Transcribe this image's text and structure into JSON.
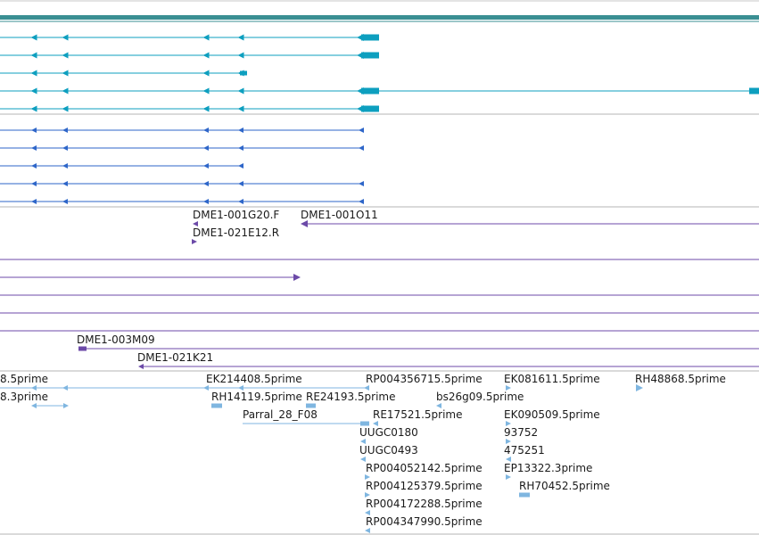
{
  "colors": {
    "mrna": "#0d9fbf",
    "cds": "#2e66c9",
    "clone": "#6c4aa8",
    "est": "#7fb6e0",
    "divider": "#9a9a9a",
    "ruler": "#3a8f93"
  },
  "icons": {
    "intron_marker": "triangle-left-icon",
    "utr_block": "exon-block-icon"
  },
  "tracks": {
    "transcripts": {
      "name": "mrna-transcripts",
      "rows": [
        {
          "id": "mrna-1"
        },
        {
          "id": "mrna-2"
        },
        {
          "id": "mrna-3"
        },
        {
          "id": "mrna-4"
        },
        {
          "id": "mrna-5"
        }
      ]
    },
    "cds": {
      "name": "coding-sequences",
      "rows": [
        {
          "id": "cds-1"
        },
        {
          "id": "cds-2"
        },
        {
          "id": "cds-3"
        },
        {
          "id": "cds-4"
        },
        {
          "id": "cds-5"
        }
      ]
    },
    "clones": {
      "name": "bac-clone-ends",
      "items": [
        {
          "label": "DME1-001G20.F"
        },
        {
          "label": "DME1-001O11"
        },
        {
          "label": "DME1-021E12.R"
        },
        {
          "label": "DME1-003M09"
        },
        {
          "label": "DME1-021K21"
        }
      ]
    },
    "ests": {
      "name": "est-alignments",
      "items": [
        {
          "label": "8.5prime"
        },
        {
          "label": "EK214408.5prime"
        },
        {
          "label": "RP004356715.5prime"
        },
        {
          "label": "EK081611.5prime"
        },
        {
          "label": "RH48868.5prime"
        },
        {
          "label": "8.3prime"
        },
        {
          "label": "RH14119.5prime"
        },
        {
          "label": "RE24193.5prime"
        },
        {
          "label": "bs26g09.5prime"
        },
        {
          "label": "Parral_28_F08"
        },
        {
          "label": "RE17521.5prime"
        },
        {
          "label": "EK090509.5prime"
        },
        {
          "label": "UUGC0180"
        },
        {
          "label": "93752"
        },
        {
          "label": "UUGC0493"
        },
        {
          "label": "475251"
        },
        {
          "label": "EP13322.3prime"
        },
        {
          "label": "RP004052142.5prime"
        },
        {
          "label": "RH70452.5prime"
        },
        {
          "label": "RP004125379.5prime"
        },
        {
          "label": "RP004172288.5prime"
        },
        {
          "label": "RP004347990.5prime"
        }
      ]
    }
  }
}
